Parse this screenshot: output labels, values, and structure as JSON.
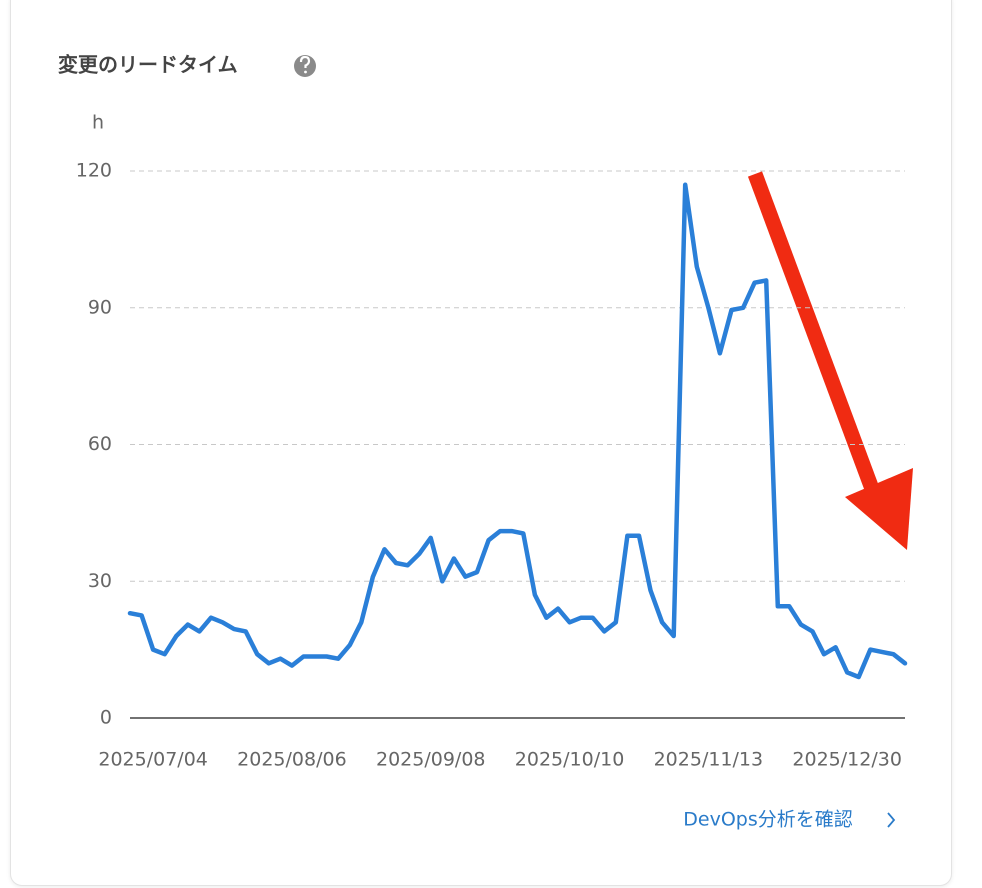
{
  "chart_data": {
    "type": "line",
    "title": "変更のリードタイム",
    "y_label": "h",
    "link": "DevOps分析を確認",
    "categories": [
      null,
      null,
      "2025/07/04",
      null,
      null,
      null,
      null,
      null,
      null,
      null,
      null,
      null,
      null,
      null,
      "2025/08/06",
      null,
      null,
      null,
      null,
      null,
      null,
      null,
      null,
      null,
      null,
      null,
      "2025/09/08",
      null,
      null,
      null,
      null,
      null,
      null,
      null,
      null,
      null,
      null,
      null,
      "2025/10/10",
      null,
      null,
      null,
      null,
      null,
      null,
      null,
      null,
      null,
      null,
      null,
      "2025/11/13",
      null,
      null,
      null,
      null,
      null,
      null,
      null,
      null,
      null,
      null,
      null,
      "2025/12/30",
      null,
      null,
      null,
      null,
      null
    ],
    "values": [
      23,
      22.5,
      15,
      14,
      18,
      20.5,
      19,
      22,
      21,
      19.5,
      19,
      14,
      12,
      13,
      11.5,
      13.5,
      13.5,
      13.5,
      13,
      16,
      21,
      31,
      37,
      34,
      33.5,
      36,
      39.5,
      30,
      35,
      31,
      32,
      39,
      41,
      41,
      40.5,
      27,
      22,
      24,
      21,
      22,
      22,
      19,
      21,
      40,
      40,
      28,
      21,
      18,
      117,
      99,
      90,
      80,
      89.5,
      90,
      95.5,
      96,
      24.5,
      24.5,
      20.5,
      19,
      14,
      15.5,
      10,
      9,
      15,
      14.5,
      14,
      12
    ],
    "color": "#2a7fd8",
    "ylim": [
      0,
      120
    ],
    "yticks": [
      0,
      30,
      60,
      90,
      120
    ],
    "grid": true
  }
}
